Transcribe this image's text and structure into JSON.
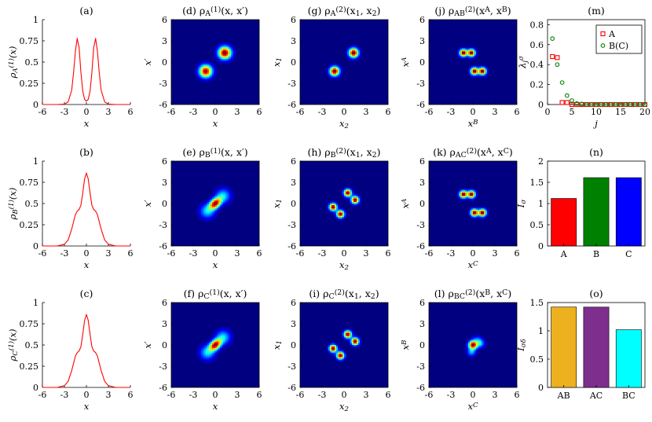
{
  "chart_data": [
    {
      "id": "a",
      "type": "line",
      "title": "(a)",
      "ylabel": "ρ_A^(1)(x)",
      "xlabel": "x",
      "xlim": [
        -6,
        6
      ],
      "ylim": [
        0,
        1
      ],
      "xticks": [
        -6,
        -3,
        0,
        3,
        6
      ],
      "yticks": [
        0,
        0.25,
        0.5,
        0.75,
        1
      ],
      "color": "#ff0000",
      "x": [
        -6,
        -5,
        -4,
        -3,
        -2.5,
        -2,
        -1.75,
        -1.5,
        -1.25,
        -1,
        -0.75,
        -0.5,
        -0.25,
        0,
        0.25,
        0.5,
        0.75,
        1,
        1.25,
        1.5,
        1.75,
        2,
        2.5,
        3,
        4,
        5,
        6
      ],
      "y": [
        0,
        0,
        0,
        0.005,
        0.03,
        0.17,
        0.38,
        0.63,
        0.78,
        0.67,
        0.38,
        0.16,
        0.06,
        0.04,
        0.06,
        0.16,
        0.38,
        0.67,
        0.78,
        0.63,
        0.38,
        0.17,
        0.03,
        0.005,
        0,
        0,
        0
      ]
    },
    {
      "id": "b",
      "type": "line",
      "title": "(b)",
      "ylabel": "ρ_B^(1)(x)",
      "xlabel": "x",
      "xlim": [
        -6,
        6
      ],
      "ylim": [
        0,
        1
      ],
      "xticks": [
        -6,
        -3,
        0,
        3,
        6
      ],
      "yticks": [
        0,
        0.25,
        0.5,
        0.75,
        1
      ],
      "color": "#ff0000",
      "x": [
        -6,
        -5,
        -4,
        -3,
        -2.5,
        -2,
        -1.5,
        -1.25,
        -1,
        -0.75,
        -0.5,
        -0.25,
        0,
        0.25,
        0.5,
        0.75,
        1,
        1.25,
        1.5,
        2,
        2.5,
        3,
        4,
        5,
        6
      ],
      "y": [
        0,
        0,
        0,
        0.02,
        0.07,
        0.2,
        0.37,
        0.41,
        0.43,
        0.48,
        0.62,
        0.79,
        0.86,
        0.79,
        0.62,
        0.48,
        0.43,
        0.41,
        0.37,
        0.2,
        0.07,
        0.02,
        0,
        0,
        0
      ]
    },
    {
      "id": "c",
      "type": "line",
      "title": "(c)",
      "ylabel": "ρ_C^(1)(x)",
      "xlabel": "x",
      "xlim": [
        -6,
        6
      ],
      "ylim": [
        0,
        1
      ],
      "xticks": [
        -6,
        -3,
        0,
        3,
        6
      ],
      "yticks": [
        0,
        0.25,
        0.5,
        0.75,
        1
      ],
      "color": "#ff0000",
      "x": [
        -6,
        -5,
        -4,
        -3,
        -2.5,
        -2,
        -1.5,
        -1.25,
        -1,
        -0.75,
        -0.5,
        -0.25,
        0,
        0.25,
        0.5,
        0.75,
        1,
        1.25,
        1.5,
        2,
        2.5,
        3,
        4,
        5,
        6
      ],
      "y": [
        0,
        0,
        0,
        0.02,
        0.07,
        0.2,
        0.37,
        0.41,
        0.43,
        0.48,
        0.62,
        0.79,
        0.86,
        0.79,
        0.62,
        0.48,
        0.43,
        0.41,
        0.37,
        0.2,
        0.07,
        0.02,
        0,
        0,
        0
      ]
    },
    {
      "id": "d",
      "type": "heatmap",
      "title": "(d) ρ_A^(1)(x, x′)",
      "xlabel": "x",
      "ylabel": "x′",
      "xlim": [
        -6,
        6
      ],
      "ylim": [
        -6,
        6
      ],
      "xticks": [
        -6,
        -3,
        0,
        3,
        6
      ],
      "yticks": [
        -6,
        -3,
        0,
        3,
        6
      ],
      "blobs": [
        {
          "x": 1.3,
          "y": 1.3,
          "sx": 0.6,
          "sy": 0.6,
          "rho": 0,
          "amp": 1
        },
        {
          "x": -1.3,
          "y": -1.3,
          "sx": 0.6,
          "sy": 0.6,
          "rho": 0,
          "amp": 0.95
        }
      ]
    },
    {
      "id": "e",
      "type": "heatmap",
      "title": "(e) ρ_B^(1)(x, x′)",
      "xlabel": "x",
      "ylabel": "x′",
      "xlim": [
        -6,
        6
      ],
      "ylim": [
        -6,
        6
      ],
      "xticks": [
        -6,
        -3,
        0,
        3,
        6
      ],
      "yticks": [
        -6,
        -3,
        0,
        3,
        6
      ],
      "blobs": [
        {
          "x": 0,
          "y": 0,
          "sx": 0.55,
          "sy": 0.55,
          "rho": 0.4,
          "amp": 1
        },
        {
          "x": 1.1,
          "y": 1.1,
          "sx": 0.7,
          "sy": 0.7,
          "rho": 0,
          "amp": 0.35
        },
        {
          "x": -1.1,
          "y": -1.1,
          "sx": 0.7,
          "sy": 0.7,
          "rho": 0,
          "amp": 0.35
        }
      ]
    },
    {
      "id": "f",
      "type": "heatmap",
      "title": "(f) ρ_C^(1)(x, x′)",
      "xlabel": "x",
      "ylabel": "x′",
      "xlim": [
        -6,
        6
      ],
      "ylim": [
        -6,
        6
      ],
      "xticks": [
        -6,
        -3,
        0,
        3,
        6
      ],
      "yticks": [
        -6,
        -3,
        0,
        3,
        6
      ],
      "blobs": [
        {
          "x": 0,
          "y": 0,
          "sx": 0.55,
          "sy": 0.55,
          "rho": 0.4,
          "amp": 1
        },
        {
          "x": 1.1,
          "y": 1.1,
          "sx": 0.7,
          "sy": 0.7,
          "rho": 0,
          "amp": 0.35
        },
        {
          "x": -1.1,
          "y": -1.1,
          "sx": 0.7,
          "sy": 0.7,
          "rho": 0,
          "amp": 0.35
        }
      ]
    },
    {
      "id": "g",
      "type": "heatmap",
      "title": "(g) ρ_A^(2)(x1, x2)",
      "xlabel": "x2",
      "ylabel": "x1",
      "xlim": [
        -6,
        6
      ],
      "ylim": [
        -6,
        6
      ],
      "xticks": [
        -6,
        -3,
        0,
        3,
        6
      ],
      "yticks": [
        -6,
        -3,
        0,
        3,
        6
      ],
      "blobs": [
        {
          "x": 1.3,
          "y": 1.3,
          "sx": 0.45,
          "sy": 0.45,
          "rho": 0,
          "amp": 1
        },
        {
          "x": -1.3,
          "y": -1.3,
          "sx": 0.45,
          "sy": 0.45,
          "rho": 0,
          "amp": 1
        }
      ]
    },
    {
      "id": "h",
      "type": "heatmap",
      "title": "(h) ρ_B^(2)(x1, x2)",
      "xlabel": "x2",
      "ylabel": "x1",
      "xlim": [
        -6,
        6
      ],
      "ylim": [
        -6,
        6
      ],
      "xticks": [
        -6,
        -3,
        0,
        3,
        6
      ],
      "yticks": [
        -6,
        -3,
        0,
        3,
        6
      ],
      "blobs": [
        {
          "x": 0.5,
          "y": 1.5,
          "sx": 0.35,
          "sy": 0.35,
          "rho": 0,
          "amp": 1
        },
        {
          "x": 1.5,
          "y": 0.5,
          "sx": 0.35,
          "sy": 0.35,
          "rho": 0,
          "amp": 1
        },
        {
          "x": -0.5,
          "y": -1.5,
          "sx": 0.35,
          "sy": 0.35,
          "rho": 0,
          "amp": 1
        },
        {
          "x": -1.5,
          "y": -0.5,
          "sx": 0.35,
          "sy": 0.35,
          "rho": 0,
          "amp": 1
        }
      ]
    },
    {
      "id": "i",
      "type": "heatmap",
      "title": "(i) ρ_C^(2)(x1, x2)",
      "xlabel": "x2",
      "ylabel": "x1",
      "xlim": [
        -6,
        6
      ],
      "ylim": [
        -6,
        6
      ],
      "xticks": [
        -6,
        -3,
        0,
        3,
        6
      ],
      "yticks": [
        -6,
        -3,
        0,
        3,
        6
      ],
      "blobs": [
        {
          "x": 0.5,
          "y": 1.5,
          "sx": 0.35,
          "sy": 0.35,
          "rho": 0,
          "amp": 1
        },
        {
          "x": 1.5,
          "y": 0.5,
          "sx": 0.35,
          "sy": 0.35,
          "rho": 0,
          "amp": 1
        },
        {
          "x": -0.5,
          "y": -1.5,
          "sx": 0.35,
          "sy": 0.35,
          "rho": 0,
          "amp": 1
        },
        {
          "x": -1.5,
          "y": -0.5,
          "sx": 0.35,
          "sy": 0.35,
          "rho": 0,
          "amp": 1
        }
      ]
    },
    {
      "id": "j",
      "type": "heatmap",
      "title": "(j) ρ_AB^(2)(x^A, x^B)",
      "xlabel": "x^B",
      "ylabel": "x^A",
      "xlim": [
        -6,
        6
      ],
      "ylim": [
        -6,
        6
      ],
      "xticks": [
        -6,
        -3,
        0,
        3,
        6
      ],
      "yticks": [
        -6,
        -3,
        0,
        3,
        6
      ],
      "blobs": [
        {
          "x": -1.3,
          "y": 1.3,
          "sx": 0.35,
          "sy": 0.35,
          "rho": 0,
          "amp": 1
        },
        {
          "x": -0.2,
          "y": 1.3,
          "sx": 0.35,
          "sy": 0.35,
          "rho": 0,
          "amp": 1
        },
        {
          "x": 1.3,
          "y": -1.3,
          "sx": 0.35,
          "sy": 0.35,
          "rho": 0,
          "amp": 1
        },
        {
          "x": 0.2,
          "y": -1.3,
          "sx": 0.35,
          "sy": 0.35,
          "rho": 0,
          "amp": 1
        }
      ]
    },
    {
      "id": "k",
      "type": "heatmap",
      "title": "(k) ρ_AC^(2)(x^A, x^C)",
      "xlabel": "x^C",
      "ylabel": "x^A",
      "xlim": [
        -6,
        6
      ],
      "ylim": [
        -6,
        6
      ],
      "xticks": [
        -6,
        -3,
        0,
        3,
        6
      ],
      "yticks": [
        -6,
        -3,
        0,
        3,
        6
      ],
      "blobs": [
        {
          "x": -1.3,
          "y": 1.3,
          "sx": 0.35,
          "sy": 0.35,
          "rho": 0,
          "amp": 1
        },
        {
          "x": -0.2,
          "y": 1.3,
          "sx": 0.35,
          "sy": 0.35,
          "rho": 0,
          "amp": 1
        },
        {
          "x": 1.3,
          "y": -1.3,
          "sx": 0.35,
          "sy": 0.35,
          "rho": 0,
          "amp": 1
        },
        {
          "x": 0.2,
          "y": -1.3,
          "sx": 0.35,
          "sy": 0.35,
          "rho": 0,
          "amp": 1
        }
      ]
    },
    {
      "id": "l",
      "type": "heatmap",
      "title": "(l) ρ_BC^(2)(x^B, x^C)",
      "xlabel": "x^C",
      "ylabel": "x^B",
      "xlim": [
        -6,
        6
      ],
      "ylim": [
        -6,
        6
      ],
      "xticks": [
        -6,
        -3,
        0,
        3,
        6
      ],
      "yticks": [
        -6,
        -3,
        0,
        3,
        6
      ],
      "blobs": [
        {
          "x": 0,
          "y": 0,
          "sx": 0.4,
          "sy": 0.4,
          "rho": 0,
          "amp": 1
        },
        {
          "x": 1.0,
          "y": 0.2,
          "sx": 0.4,
          "sy": 0.4,
          "rho": 0,
          "amp": 0.3
        },
        {
          "x": -0.2,
          "y": -1.0,
          "sx": 0.4,
          "sy": 0.4,
          "rho": 0,
          "amp": 0.3
        },
        {
          "x": 0.6,
          "y": 0.7,
          "sx": 0.45,
          "sy": 0.45,
          "rho": 0,
          "amp": 0.2
        }
      ]
    },
    {
      "id": "m",
      "type": "scatter",
      "title": "(m)",
      "xlabel": "j",
      "ylabel": "λ_j^σ",
      "xlim": [
        0,
        20
      ],
      "ylim": [
        0,
        0.85
      ],
      "xticks": [
        0,
        5,
        10,
        15,
        20
      ],
      "yticks": [
        0,
        0.2,
        0.4,
        0.6,
        0.8
      ],
      "legend": {
        "position": "top-right"
      },
      "series": [
        {
          "name": "A",
          "marker": "square",
          "color": "#ff0000",
          "x": [
            1,
            2,
            3,
            4,
            5,
            6,
            7,
            8,
            9,
            10,
            11,
            12,
            13,
            14,
            15,
            16,
            17,
            18,
            19,
            20
          ],
          "y": [
            0.48,
            0.47,
            0.02,
            0.02,
            0,
            0,
            0,
            0,
            0,
            0,
            0,
            0,
            0,
            0,
            0,
            0,
            0,
            0,
            0,
            0
          ]
        },
        {
          "name": "B(C)",
          "marker": "circle",
          "color": "#008000",
          "x": [
            1,
            2,
            3,
            4,
            5,
            6,
            7,
            8,
            9,
            10,
            11,
            12,
            13,
            14,
            15,
            16,
            17,
            18,
            19,
            20
          ],
          "y": [
            0.66,
            0.4,
            0.22,
            0.09,
            0.04,
            0.01,
            0.005,
            0,
            0,
            0,
            0,
            0,
            0,
            0,
            0,
            0,
            0,
            0,
            0,
            0
          ]
        }
      ]
    },
    {
      "id": "n",
      "type": "bar",
      "title": "(n)",
      "ylabel": "I_σ",
      "ylim": [
        0,
        2
      ],
      "yticks": [
        0,
        0.5,
        1,
        1.5,
        2
      ],
      "categories": [
        "A",
        "B",
        "C"
      ],
      "values": [
        1.12,
        1.61,
        1.61
      ],
      "colors": [
        "#ff0000",
        "#008000",
        "#0000ff"
      ]
    },
    {
      "id": "o",
      "type": "bar",
      "title": "(o)",
      "ylabel": "I_σδ",
      "ylim": [
        0,
        1.5
      ],
      "yticks": [
        0,
        0.5,
        1,
        1.5
      ],
      "categories": [
        "AB",
        "AC",
        "BC"
      ],
      "values": [
        1.42,
        1.42,
        1.02
      ],
      "colors": [
        "#edb120",
        "#7e2f8e",
        "#00ffff"
      ]
    }
  ]
}
